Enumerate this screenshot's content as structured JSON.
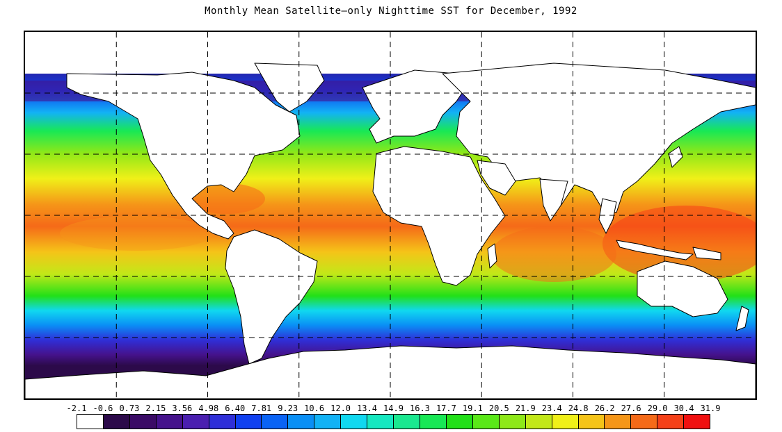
{
  "title": "Monthly Mean Satellite—only Nighttime SST for December, 1992",
  "legend": {
    "labels": [
      "-2.1",
      "-0.6",
      "0.73",
      "2.15",
      "3.56",
      "4.98",
      "6.40",
      "7.81",
      "9.23",
      "10.6",
      "12.0",
      "13.4",
      "14.9",
      "16.3",
      "17.7",
      "19.1",
      "20.5",
      "21.9",
      "23.4",
      "24.8",
      "26.2",
      "27.6",
      "29.0",
      "30.4",
      "31.9"
    ],
    "colors": [
      "#ffffff",
      "#2c0a4a",
      "#3a0b66",
      "#45128c",
      "#4a1fb0",
      "#2f2fd8",
      "#1040f0",
      "#0a63f5",
      "#0a8ff5",
      "#12b2f5",
      "#10d8f0",
      "#15e8c0",
      "#1ae890",
      "#18e855",
      "#22e018",
      "#5ae818",
      "#8ee818",
      "#c2e818",
      "#f0f018",
      "#f5c418",
      "#f59618",
      "#f56a18",
      "#f54018",
      "#f01010"
    ]
  },
  "map": {
    "projection": "equirectangular",
    "lon_range": [
      -180,
      180
    ],
    "lat_range": [
      -90,
      90
    ],
    "gridlines_lon": [
      -135,
      -90,
      -45,
      0,
      45,
      90,
      135
    ],
    "gridlines_lat": [
      -60,
      -30,
      0,
      30,
      60
    ],
    "gridline_style": "dashed",
    "land_color": "#ffffff",
    "coastline_color": "#000000"
  }
}
